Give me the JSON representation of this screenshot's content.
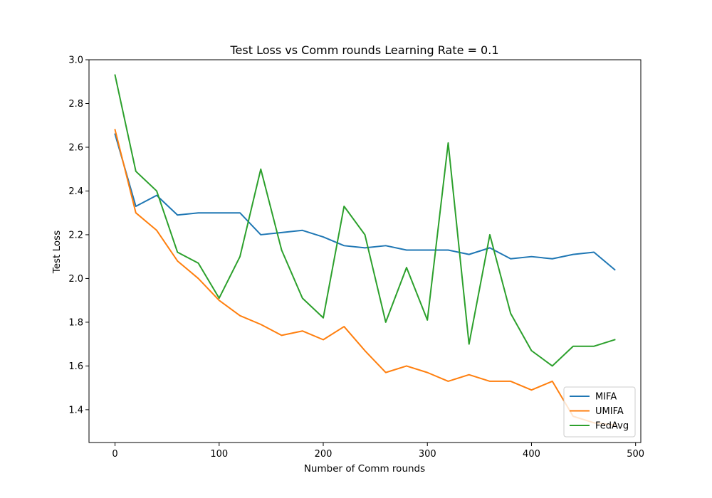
{
  "chart_data": {
    "type": "line",
    "title": "Test Loss vs Comm rounds Learning Rate = 0.1",
    "xlabel": "Number of Comm rounds",
    "ylabel": "Test Loss",
    "xlim": [
      -25,
      505
    ],
    "ylim": [
      1.25,
      3.0
    ],
    "xticks": [
      0,
      100,
      200,
      300,
      400,
      500
    ],
    "yticks": [
      1.4,
      1.6,
      1.8,
      2.0,
      2.2,
      2.4,
      2.6,
      2.8,
      3.0
    ],
    "xtick_labels": [
      "0",
      "100",
      "200",
      "300",
      "400",
      "500"
    ],
    "ytick_labels": [
      "1.4",
      "1.6",
      "1.8",
      "2.0",
      "2.2",
      "2.4",
      "2.6",
      "2.8",
      "3.0"
    ],
    "grid": false,
    "legend_position": "bottom-right",
    "x": [
      0,
      20,
      40,
      60,
      80,
      100,
      120,
      140,
      160,
      180,
      200,
      220,
      240,
      260,
      280,
      300,
      320,
      340,
      360,
      380,
      400,
      420,
      440,
      460,
      480
    ],
    "series": [
      {
        "name": "MIFA",
        "color": "#1f77b4",
        "values": [
          2.66,
          2.33,
          2.38,
          2.29,
          2.3,
          2.3,
          2.3,
          2.2,
          2.21,
          2.22,
          2.19,
          2.15,
          2.14,
          2.15,
          2.13,
          2.13,
          2.13,
          2.11,
          2.14,
          2.09,
          2.1,
          2.09,
          2.11,
          2.12,
          2.04
        ]
      },
      {
        "name": "UMIFA",
        "color": "#ff7f0e",
        "values": [
          2.68,
          2.3,
          2.22,
          2.08,
          2.0,
          1.9,
          1.83,
          1.79,
          1.74,
          1.76,
          1.72,
          1.78,
          1.67,
          1.57,
          1.6,
          1.57,
          1.53,
          1.56,
          1.53,
          1.53,
          1.49,
          1.53,
          1.37,
          1.34,
          1.33
        ]
      },
      {
        "name": "FedAvg",
        "color": "#2ca02c",
        "values": [
          2.93,
          2.49,
          2.4,
          2.12,
          2.07,
          1.91,
          2.1,
          2.5,
          2.13,
          1.91,
          1.82,
          2.33,
          2.2,
          1.8,
          2.05,
          1.81,
          2.62,
          1.7,
          2.2,
          1.84,
          1.67,
          1.6,
          1.69,
          1.69,
          1.72
        ]
      }
    ]
  }
}
